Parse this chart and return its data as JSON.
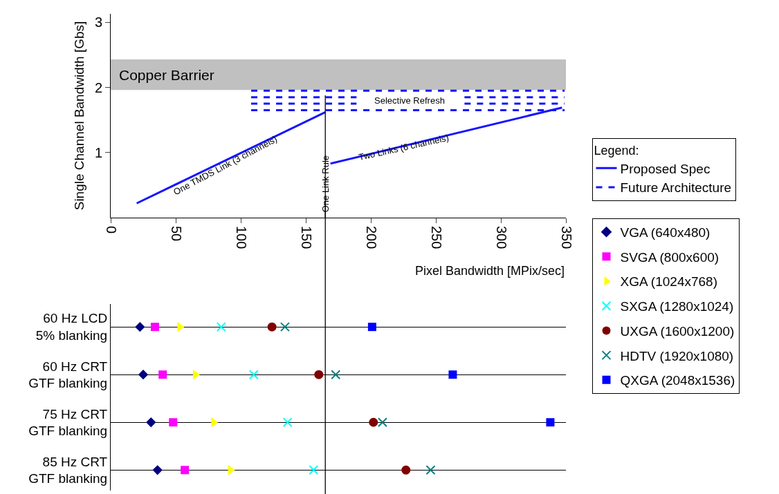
{
  "chart_data": [
    {
      "type": "line",
      "xlabel": "Pixel Bandwidth [MPix/sec]",
      "ylabel": "Single Channel Bandwidth [Gbs]",
      "legend_title": "Legend:",
      "legend": "right",
      "grid": false,
      "xlim": [
        0,
        350
      ],
      "xticks": [
        0,
        50,
        100,
        150,
        200,
        250,
        300,
        350
      ],
      "ylim": [
        0,
        3.13
      ],
      "yticks": [
        1,
        2,
        3
      ],
      "series": [
        {
          "name": "Proposed Spec",
          "color": "#1414ff",
          "line_style": "solid",
          "x": [
            20,
            165,
            167,
            169,
            347
          ],
          "values": [
            0.22,
            1.62,
            null,
            0.83,
            1.69
          ]
        },
        {
          "name": "Future Architecture",
          "color": "#1414ff",
          "line_style": "dashed",
          "x": [
            108,
            349
          ],
          "values": [
            1.95,
            1.95
          ]
        },
        {
          "color": "#1414ff",
          "line_style": "dashed",
          "x": [
            108,
            189
          ],
          "values": [
            1.85,
            1.85
          ]
        },
        {
          "color": "#1414ff",
          "line_style": "dashed",
          "x": [
            272,
            349
          ],
          "values": [
            1.85,
            1.85
          ]
        },
        {
          "color": "#1414ff",
          "line_style": "dashed",
          "x": [
            108,
            189
          ],
          "values": [
            1.75,
            1.75
          ]
        },
        {
          "color": "#1414ff",
          "line_style": "dashed",
          "x": [
            272,
            349
          ],
          "values": [
            1.75,
            1.75
          ]
        },
        {
          "color": "#1414ff",
          "line_style": "dashed",
          "x": [
            108,
            349
          ],
          "values": [
            1.65,
            1.65
          ]
        }
      ],
      "bands": [
        {
          "axis": "y",
          "from": 1.96,
          "to": 2.43,
          "label": "Copper Barrier",
          "color": "#c0c0c0"
        }
      ],
      "ref_lines": [
        {
          "axis": "x",
          "value": 165,
          "label": "One Link Rule"
        }
      ],
      "annotations": [
        {
          "text": "One TMDS Link (3 channels)",
          "x": 88,
          "y": 0.8
        },
        {
          "text": "Two Links (6 channels)",
          "x": 225,
          "y": 1.08
        },
        "Selective Refresh"
      ]
    },
    {
      "type": "scatter",
      "orientation": "horizontal",
      "legend": "right",
      "grid": "y",
      "tick_labels": "y",
      "xlim": [
        0,
        350
      ],
      "categories": [
        "60 Hz LCD\n5% blanking",
        "60 Hz CRT\nGTF blanking",
        "75 Hz CRT\nGTF blanking",
        "85 Hz CRT\nGTF blanking"
      ],
      "ref_lines": [
        {
          "axis": "x",
          "value": 165
        }
      ],
      "series": [
        {
          "name": "VGA (640x480)",
          "color": "#000080",
          "marker": "diamond",
          "values": [
            22.5,
            25,
            31,
            36
          ]
        },
        {
          "name": "SVGA (800x600)",
          "color": "#ff00ff",
          "marker": "square",
          "values": [
            34,
            40,
            48,
            57
          ]
        },
        {
          "name": "XGA (1024x768)",
          "color": "#ffff00",
          "marker": "triangle",
          "values": [
            53,
            65,
            79,
            92
          ]
        },
        {
          "name": "SXGA (1280x1024)",
          "color": "#00ffff",
          "marker": "cross",
          "values": [
            85,
            110,
            136,
            156
          ]
        },
        {
          "name": "UXGA (1600x1200)",
          "color": "#800000",
          "marker": "circle",
          "values": [
            124,
            160,
            202,
            227
          ]
        },
        {
          "name": "HDTV (1920x1080)",
          "color": "#008080",
          "marker": "cross",
          "values": [
            134,
            173,
            209,
            246
          ]
        },
        {
          "name": "QXGA (2048x1536)",
          "color": "#0000ff",
          "marker": "square",
          "values": [
            201,
            263,
            338,
            null
          ]
        }
      ]
    }
  ]
}
